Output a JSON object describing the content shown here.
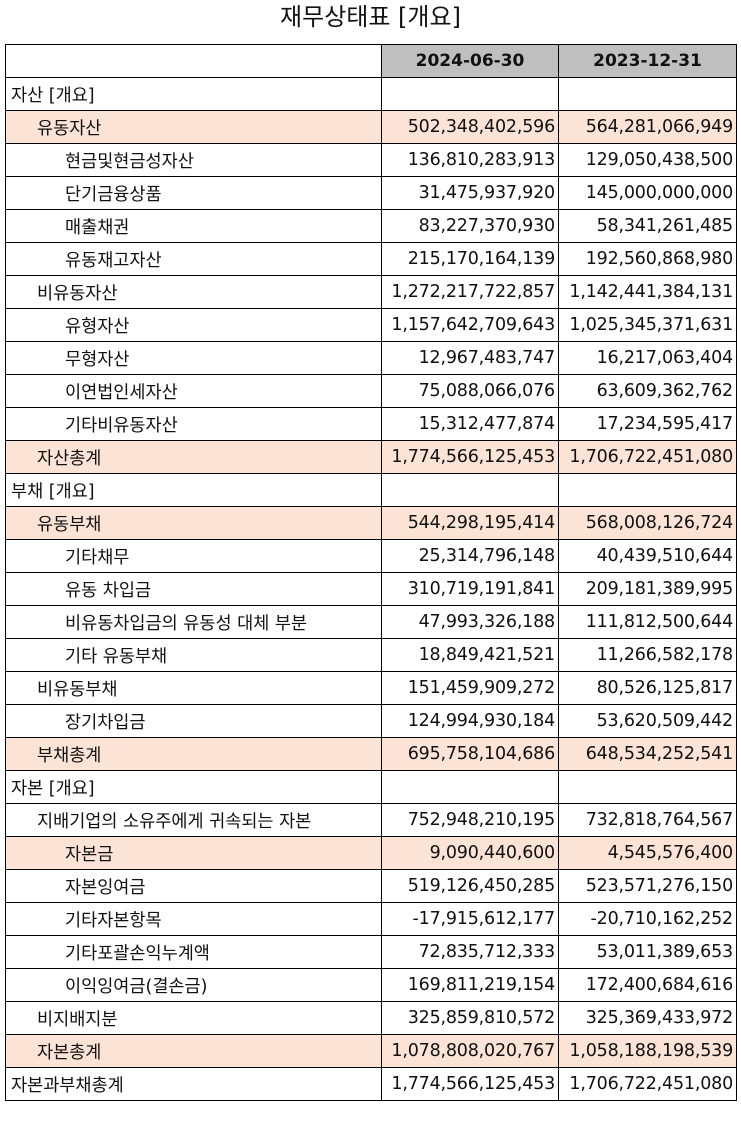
{
  "title": "재무상태표 [개요]",
  "columns": [
    "2024-06-30",
    "2023-12-31"
  ],
  "colors": {
    "header_bg": "#bfbfbf",
    "highlight_bg": "#fbe3d6"
  },
  "rows": [
    {
      "label": "자산 [개요]",
      "level": 0,
      "highlight": false,
      "v1": "",
      "v2": ""
    },
    {
      "label": "유동자산",
      "level": 1,
      "highlight": true,
      "v1": "502,348,402,596",
      "v2": "564,281,066,949"
    },
    {
      "label": "현금및현금성자산",
      "level": 2,
      "highlight": false,
      "v1": "136,810,283,913",
      "v2": "129,050,438,500"
    },
    {
      "label": "단기금융상품",
      "level": 2,
      "highlight": false,
      "v1": "31,475,937,920",
      "v2": "145,000,000,000"
    },
    {
      "label": "매출채권",
      "level": 2,
      "highlight": false,
      "v1": "83,227,370,930",
      "v2": "58,341,261,485"
    },
    {
      "label": "유동재고자산",
      "level": 2,
      "highlight": false,
      "v1": "215,170,164,139",
      "v2": "192,560,868,980"
    },
    {
      "label": "비유동자산",
      "level": 1,
      "highlight": false,
      "v1": "1,272,217,722,857",
      "v2": "1,142,441,384,131"
    },
    {
      "label": "유형자산",
      "level": 2,
      "highlight": false,
      "v1": "1,157,642,709,643",
      "v2": "1,025,345,371,631"
    },
    {
      "label": "무형자산",
      "level": 2,
      "highlight": false,
      "v1": "12,967,483,747",
      "v2": "16,217,063,404"
    },
    {
      "label": "이연법인세자산",
      "level": 2,
      "highlight": false,
      "v1": "75,088,066,076",
      "v2": "63,609,362,762"
    },
    {
      "label": "기타비유동자산",
      "level": 2,
      "highlight": false,
      "v1": "15,312,477,874",
      "v2": "17,234,595,417"
    },
    {
      "label": "자산총계",
      "level": 1,
      "highlight": true,
      "v1": "1,774,566,125,453",
      "v2": "1,706,722,451,080"
    },
    {
      "label": "부채 [개요]",
      "level": 0,
      "highlight": false,
      "v1": "",
      "v2": ""
    },
    {
      "label": "유동부채",
      "level": 1,
      "highlight": true,
      "v1": "544,298,195,414",
      "v2": "568,008,126,724"
    },
    {
      "label": "기타채무",
      "level": 2,
      "highlight": false,
      "v1": "25,314,796,148",
      "v2": "40,439,510,644"
    },
    {
      "label": "유동 차입금",
      "level": 2,
      "highlight": false,
      "v1": "310,719,191,841",
      "v2": "209,181,389,995"
    },
    {
      "label": "비유동차입금의 유동성 대체 부분",
      "level": 2,
      "highlight": false,
      "v1": "47,993,326,188",
      "v2": "111,812,500,644"
    },
    {
      "label": "기타 유동부채",
      "level": 2,
      "highlight": false,
      "v1": "18,849,421,521",
      "v2": "11,266,582,178"
    },
    {
      "label": "비유동부채",
      "level": 1,
      "highlight": false,
      "v1": "151,459,909,272",
      "v2": "80,526,125,817"
    },
    {
      "label": "장기차입금",
      "level": 2,
      "highlight": false,
      "v1": "124,994,930,184",
      "v2": "53,620,509,442"
    },
    {
      "label": "부채총계",
      "level": 1,
      "highlight": true,
      "v1": "695,758,104,686",
      "v2": "648,534,252,541"
    },
    {
      "label": "자본 [개요]",
      "level": 0,
      "highlight": false,
      "v1": "",
      "v2": ""
    },
    {
      "label": "지배기업의 소유주에게 귀속되는 자본",
      "level": 1,
      "highlight": false,
      "v1": "752,948,210,195",
      "v2": "732,818,764,567"
    },
    {
      "label": "자본금",
      "level": 2,
      "highlight": true,
      "v1": "9,090,440,600",
      "v2": "4,545,576,400"
    },
    {
      "label": "자본잉여금",
      "level": 2,
      "highlight": false,
      "v1": "519,126,450,285",
      "v2": "523,571,276,150"
    },
    {
      "label": "기타자본항목",
      "level": 2,
      "highlight": false,
      "v1": "-17,915,612,177",
      "v2": "-20,710,162,252"
    },
    {
      "label": "기타포괄손익누계액",
      "level": 2,
      "highlight": false,
      "v1": "72,835,712,333",
      "v2": "53,011,389,653"
    },
    {
      "label": "이익잉여금(결손금)",
      "level": 2,
      "highlight": false,
      "v1": "169,811,219,154",
      "v2": "172,400,684,616"
    },
    {
      "label": "비지배지분",
      "level": 1,
      "highlight": false,
      "v1": "325,859,810,572",
      "v2": "325,369,433,972"
    },
    {
      "label": "자본총계",
      "level": 1,
      "highlight": true,
      "v1": "1,078,808,020,767",
      "v2": "1,058,188,198,539"
    },
    {
      "label": "자본과부채총계",
      "level": 0,
      "highlight": false,
      "v1": "1,774,566,125,453",
      "v2": "1,706,722,451,080"
    }
  ]
}
